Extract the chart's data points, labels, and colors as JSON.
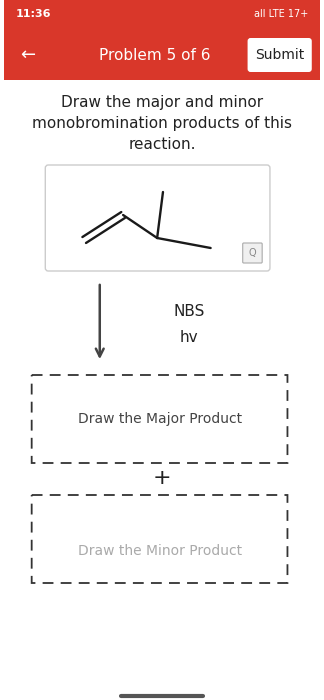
{
  "bg_color": "#ffffff",
  "header_color": "#d9372a",
  "status_bar_text": "11:36",
  "status_bar_right": "all LTE 17+",
  "nav_text": "Problem 5 of 6",
  "nav_back": "←",
  "nav_button": "Submit",
  "question_text": "Draw the major and minor\nmonobromination products of this\nreaction.",
  "reagent_line1": "NBS",
  "reagent_line2": "hv",
  "major_label": "Draw the Major Product",
  "minor_label": "Draw the Minor Product",
  "plus_sign": "+",
  "text_color": "#222222",
  "arrow_color": "#444444",
  "dashed_box_color": "#333333"
}
